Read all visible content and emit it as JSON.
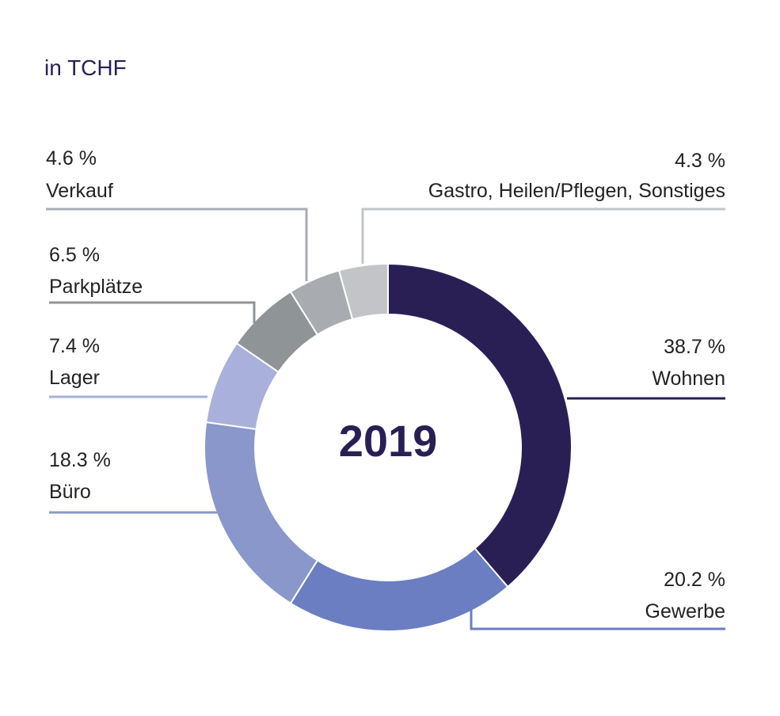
{
  "chart_data": {
    "type": "pie",
    "variant": "donut",
    "unit_label": "in TCHF",
    "center_label": "2019",
    "slices": [
      {
        "name": "Wohnen",
        "value": 38.7,
        "pct_label": "38.7 %",
        "color": "#2a1f55"
      },
      {
        "name": "Gewerbe",
        "value": 20.2,
        "pct_label": "20.2 %",
        "color": "#6b7ec2"
      },
      {
        "name": "Büro",
        "value": 18.3,
        "pct_label": "18.3 %",
        "color": "#8a97cb"
      },
      {
        "name": "Lager",
        "value": 7.4,
        "pct_label": "7.4 %",
        "color": "#a8b0db"
      },
      {
        "name": "Parkplätze",
        "value": 6.5,
        "pct_label": "6.5 %",
        "color": "#8f9497"
      },
      {
        "name": "Verkauf",
        "value": 4.6,
        "pct_label": "4.6 %",
        "color": "#a8acb0"
      },
      {
        "name": "Gastro, Heilen/Pflegen, Sonstiges",
        "value": 4.3,
        "pct_label": "4.3 %",
        "color": "#c2c4c7"
      }
    ]
  }
}
